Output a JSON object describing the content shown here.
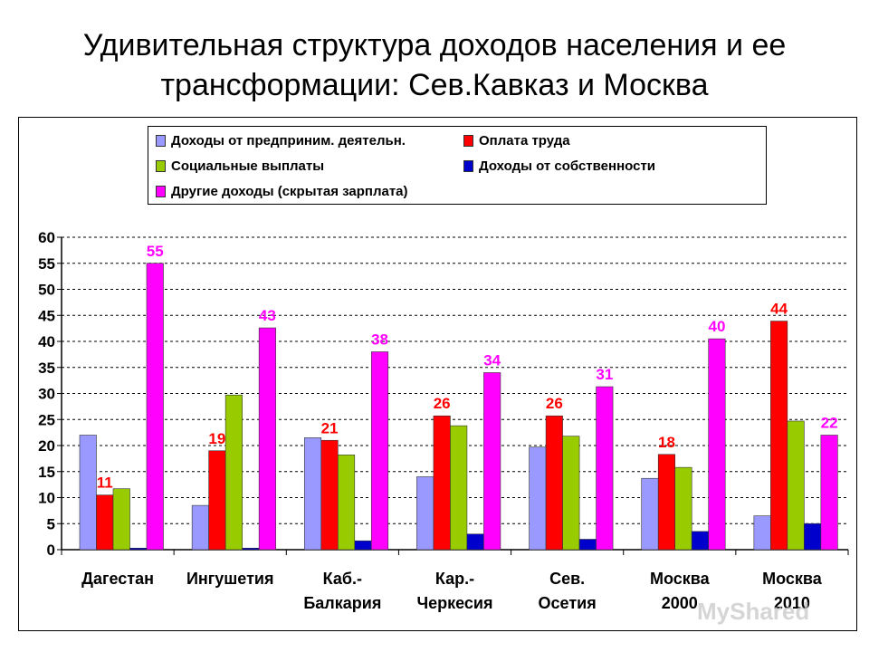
{
  "title_lines": [
    "Удивительная структура доходов населения и ее",
    "трансформации: Сев.Кавказ и Москва"
  ],
  "watermark": "MyShared",
  "colors": {
    "entrepreneurial": "#9999ff",
    "wages": "#ff0000",
    "social": "#99cc00",
    "property": "#0000cc",
    "other": "#ff00ff",
    "label_red": "#ff0000",
    "label_magenta": "#ff00ff"
  },
  "legend": [
    {
      "key": "entrepreneurial",
      "label": "Доходы от предприним. деятельн."
    },
    {
      "key": "wages",
      "label": "Оплата труда"
    },
    {
      "key": "social",
      "label": "Социальные выплаты"
    },
    {
      "key": "property",
      "label": "Доходы от собственности"
    },
    {
      "key": "other",
      "label": "Другие доходы (скрытая зарплата)"
    }
  ],
  "chart_data": {
    "type": "bar",
    "categories": [
      [
        "Дагестан"
      ],
      [
        "Ингушетия"
      ],
      [
        "Каб.-",
        "Балкария"
      ],
      [
        "Кар.-",
        "Черкесия"
      ],
      [
        "Сев.",
        "Осетия"
      ],
      [
        "Москва",
        "2000"
      ],
      [
        "Москва",
        "2010"
      ]
    ],
    "series": [
      {
        "key": "entrepreneurial",
        "name": "Доходы от предприним. деятельн.",
        "values": [
          22,
          8.5,
          21.5,
          14,
          19.7,
          13.7,
          6.5
        ]
      },
      {
        "key": "wages",
        "name": "Оплата труда",
        "values": [
          10.5,
          19,
          21,
          25.7,
          25.7,
          18.3,
          43.9
        ]
      },
      {
        "key": "social",
        "name": "Социальные выплаты",
        "values": [
          11.7,
          29.7,
          18.2,
          23.8,
          21.8,
          15.8,
          24.7
        ]
      },
      {
        "key": "property",
        "name": "Доходы от собственности",
        "values": [
          0.3,
          0.3,
          1.7,
          3,
          2,
          3.5,
          5
        ]
      },
      {
        "key": "other",
        "name": "Другие доходы (скрытая зарплата)",
        "values": [
          55,
          42.6,
          38,
          34,
          31.3,
          40.5,
          22
        ]
      }
    ],
    "data_labels": {
      "wages": [
        "11",
        "19",
        "21",
        "26",
        "26",
        "18",
        "44"
      ],
      "other": [
        "55",
        "43",
        "38",
        "34",
        "31",
        "40",
        "22"
      ]
    },
    "ylim": [
      0,
      60
    ],
    "yticks": [
      0,
      5,
      10,
      15,
      20,
      25,
      30,
      35,
      40,
      45,
      50,
      55,
      60
    ],
    "grid": "horizontal dashed",
    "legend_position": "top"
  }
}
